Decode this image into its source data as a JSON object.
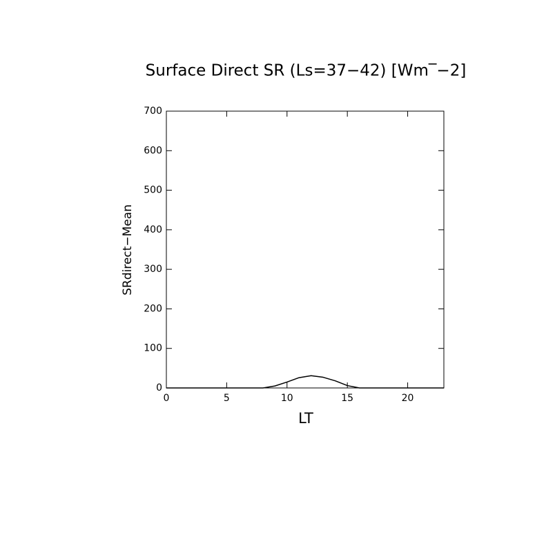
{
  "chart_data": {
    "type": "line",
    "title": "Surface Direct SR (Ls=37−42) [Wm‾−2]",
    "x_label": "LT",
    "y_label": "SRdirect−Mean",
    "x": [
      0,
      1,
      2,
      3,
      4,
      5,
      6,
      7,
      8,
      9,
      10,
      11,
      12,
      13,
      14,
      15,
      16,
      17,
      18,
      19,
      20,
      21,
      22,
      23
    ],
    "values": [
      0,
      0,
      0,
      0,
      0,
      0,
      0,
      0,
      0,
      5,
      15,
      26,
      31,
      27,
      18,
      6,
      0,
      0,
      0,
      0,
      0,
      0,
      0,
      0
    ],
    "color": "#000000",
    "xlim": [
      0,
      23
    ],
    "xticks": [
      0,
      5,
      10,
      15,
      20
    ],
    "ylim": [
      0,
      700
    ],
    "yticks": [
      0,
      100,
      200,
      300,
      400,
      500,
      600,
      700
    ],
    "grid": false
  }
}
